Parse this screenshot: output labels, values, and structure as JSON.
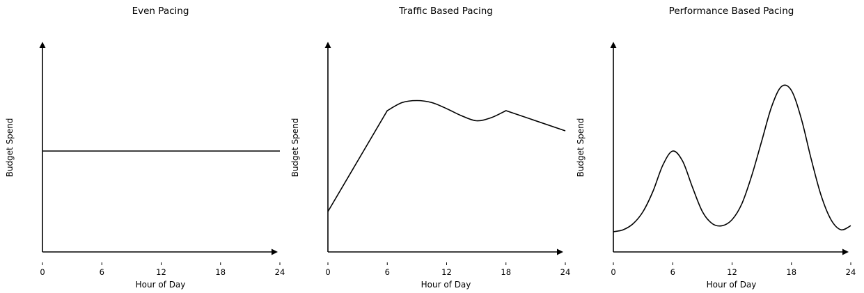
{
  "chart_data": [
    {
      "type": "line",
      "title": "Even Pacing",
      "xlabel": "Hour of Day",
      "ylabel": "Budget Spend",
      "xlim": [
        0,
        24
      ],
      "ylim": [
        0,
        1
      ],
      "xticks": [
        "0",
        "6",
        "12",
        "18",
        "24"
      ],
      "yticks": [],
      "series": [
        {
          "x": [
            0,
            24
          ],
          "y": [
            0.5,
            0.5
          ]
        }
      ]
    },
    {
      "type": "line",
      "title": "Traffic Based Pacing",
      "xlabel": "Hour of Day",
      "ylabel": "Budget Spend",
      "xlim": [
        0,
        24
      ],
      "ylim": [
        0,
        1
      ],
      "xticks": [
        "0",
        "6",
        "12",
        "18",
        "24"
      ],
      "yticks": [],
      "series": [
        {
          "x": [
            0,
            6,
            7.5,
            9,
            10.5,
            12,
            13.5,
            15,
            16.5,
            18,
            21,
            24
          ],
          "y": [
            0.2,
            0.7,
            0.74,
            0.75,
            0.74,
            0.71,
            0.675,
            0.65,
            0.665,
            0.7,
            0.65,
            0.6
          ]
        }
      ]
    },
    {
      "type": "line",
      "title": "Performance Based Pacing",
      "xlabel": "Hour of Day",
      "ylabel": "Budget Spend",
      "xlim": [
        0,
        24
      ],
      "ylim": [
        0,
        1
      ],
      "xticks": [
        "0",
        "6",
        "12",
        "18",
        "24"
      ],
      "yticks": [],
      "series": [
        {
          "x": [
            0,
            1,
            2,
            3,
            4,
            5,
            6,
            7,
            8,
            9,
            10,
            11,
            12,
            13,
            14,
            15,
            16,
            17,
            18,
            19,
            20,
            21,
            22,
            23,
            24
          ],
          "y": [
            0.1,
            0.11,
            0.14,
            0.2,
            0.3,
            0.43,
            0.5,
            0.45,
            0.32,
            0.2,
            0.14,
            0.13,
            0.16,
            0.24,
            0.38,
            0.55,
            0.72,
            0.82,
            0.8,
            0.66,
            0.46,
            0.28,
            0.16,
            0.11,
            0.13
          ]
        }
      ]
    }
  ]
}
